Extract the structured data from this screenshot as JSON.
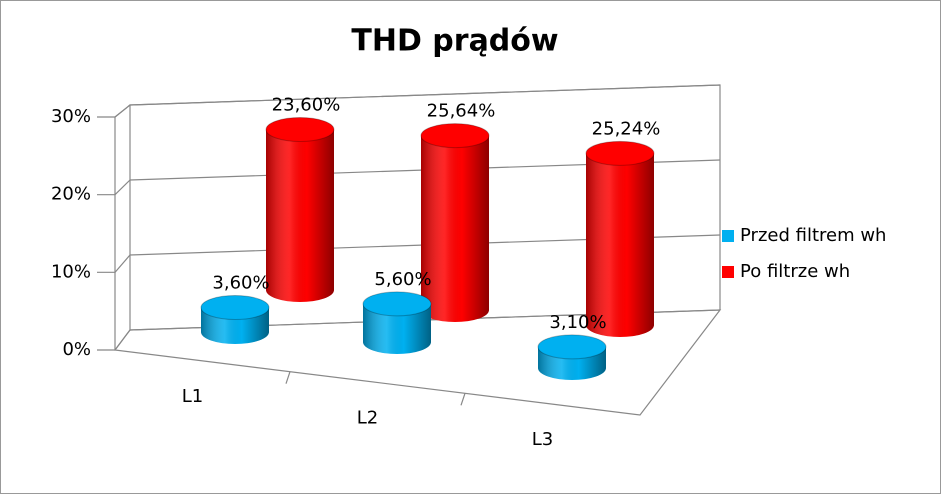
{
  "chart_data": {
    "type": "bar3d",
    "title": "THD prądów",
    "categories": [
      "L1",
      "L2",
      "L3"
    ],
    "series": [
      {
        "name": "Przed filtrem wh",
        "color": "#00b0f0",
        "values": [
          3.6,
          5.6,
          3.1
        ],
        "value_labels": [
          "3,60%",
          "5,60%",
          "3,10%"
        ]
      },
      {
        "name": "Po filtrze wh",
        "color": "#ff0000",
        "values": [
          23.6,
          25.64,
          25.24
        ],
        "value_labels": [
          "23,60%",
          "25,64%",
          "25,24%"
        ]
      }
    ],
    "ylim": [
      0,
      30
    ],
    "yticks": [
      {
        "value": 0,
        "label": "0%"
      },
      {
        "value": 10,
        "label": "10%"
      },
      {
        "value": 20,
        "label": "20%"
      },
      {
        "value": 30,
        "label": "30%"
      }
    ],
    "grid": true,
    "legend": "right"
  }
}
